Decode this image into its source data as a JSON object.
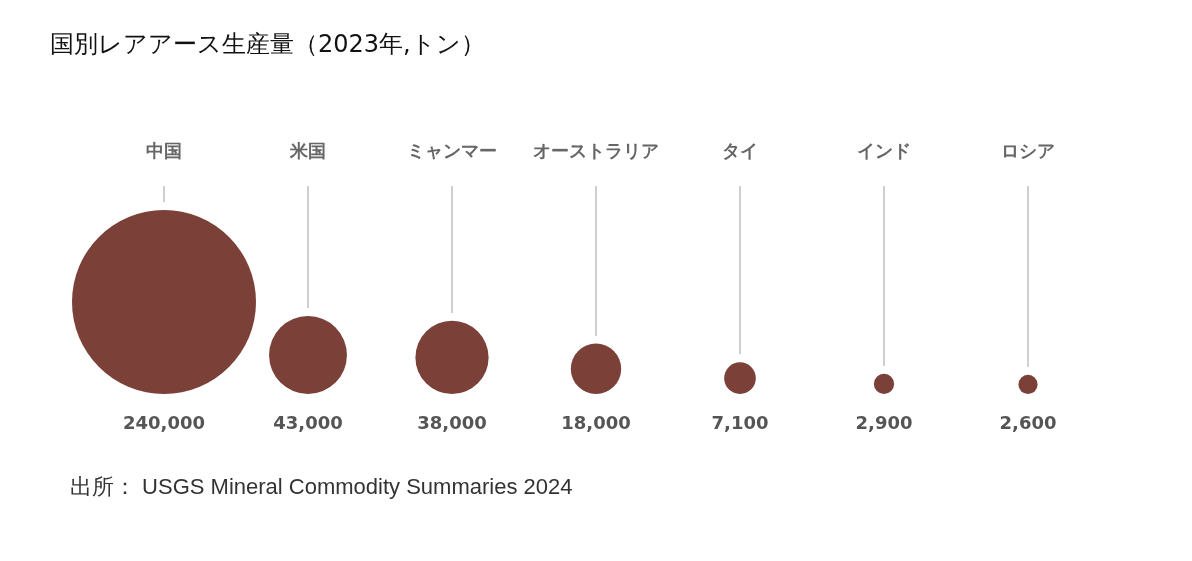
{
  "chart_data": {
    "type": "other",
    "title": "国別レアアース生産量（2023年,トン）",
    "categories": [
      "中国",
      "米国",
      "ミャンマー",
      "オーストラリア",
      "タイ",
      "インド",
      "ロシア"
    ],
    "values": [
      240000,
      43000,
      38000,
      18000,
      7100,
      2900,
      2600
    ],
    "value_labels": [
      "240,000",
      "43,000",
      "38,000",
      "18,000",
      "7,100",
      "2,900",
      "2,600"
    ],
    "color": "#7b4038",
    "annotations": [
      "出所： USGS Mineral Commodity Summaries 2024"
    ]
  }
}
